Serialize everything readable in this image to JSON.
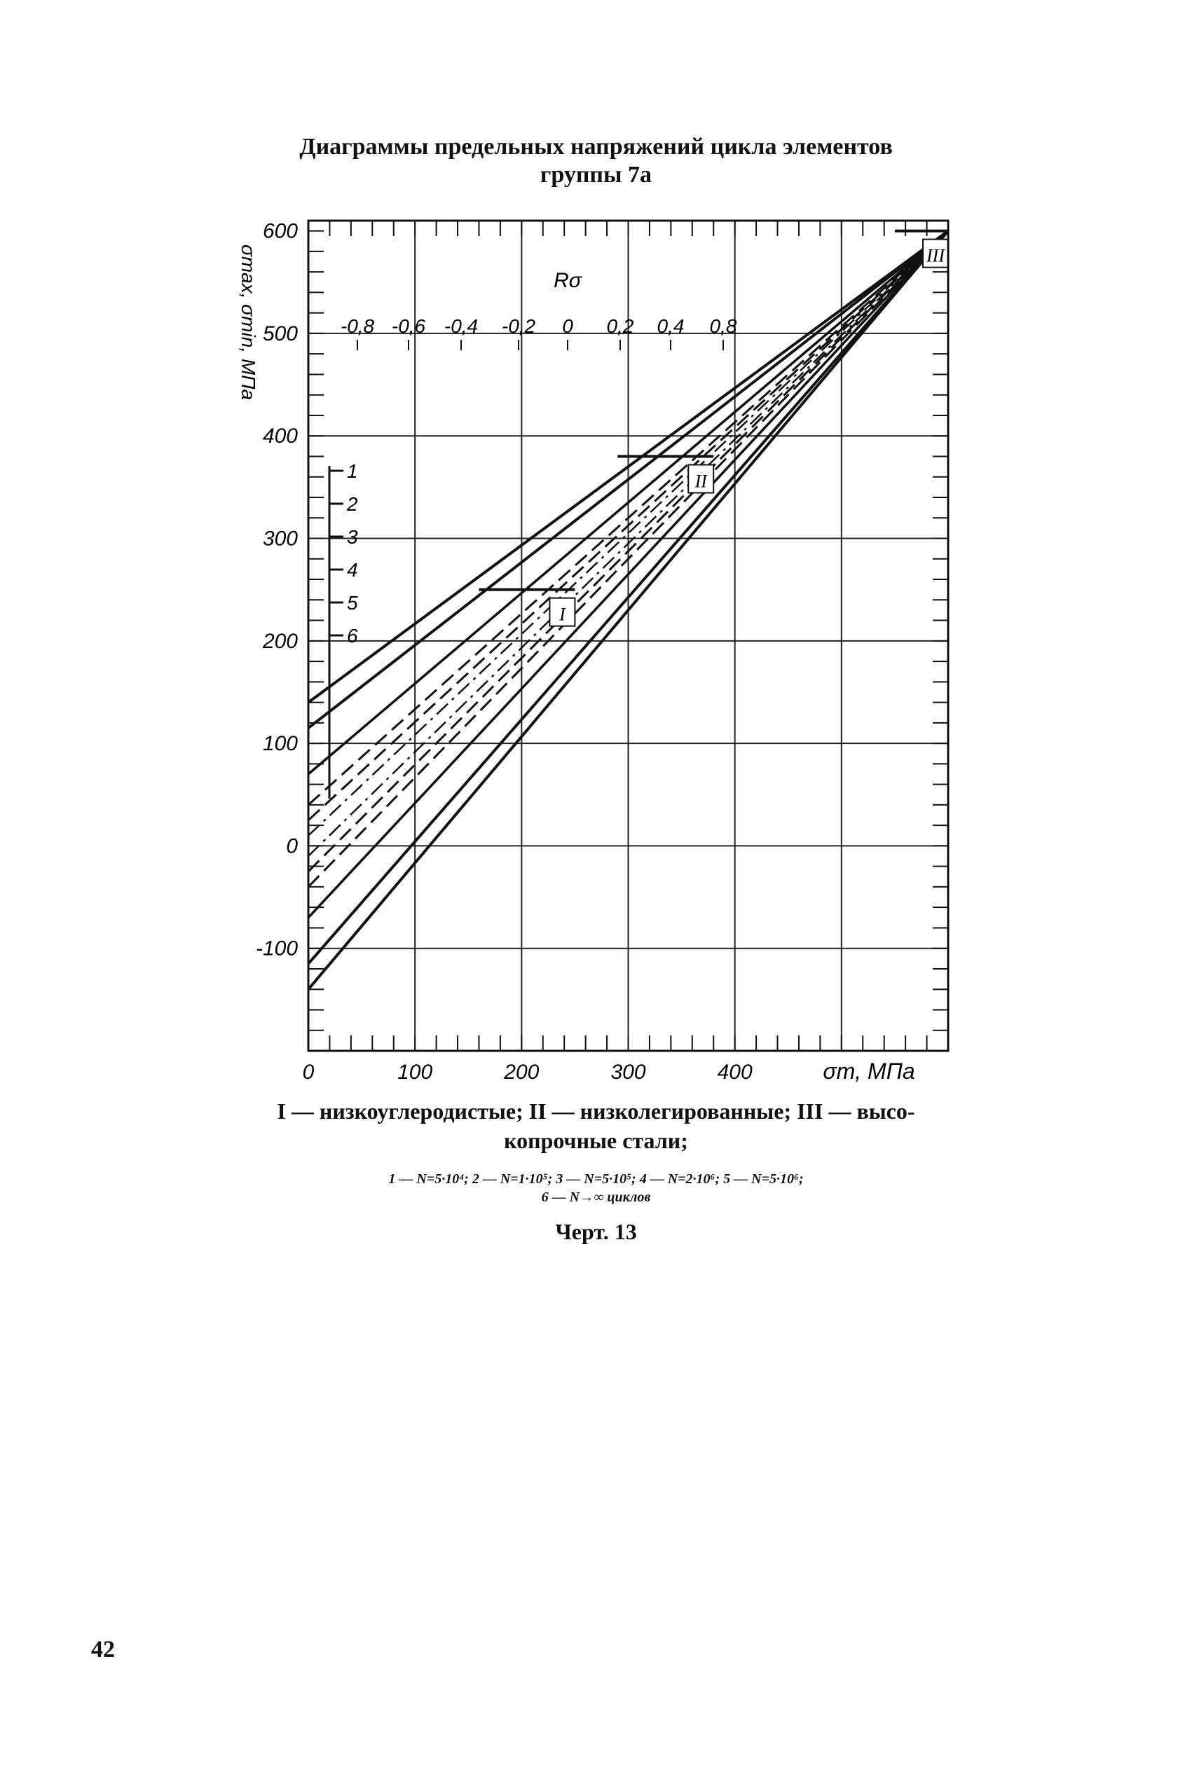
{
  "page": {
    "title_line1": "Диаграммы предельных напряжений цикла элементов",
    "title_line2": "группы 7а",
    "caption_line1": "I — низкоуглеродистые; II — низколегированные; III — высо-",
    "caption_line2": "копрочные стали;",
    "caption_line3": "1 — N=5·10⁴; 2 — N=1·10⁵; 3 — N=5·10⁵; 4 — N=2·10⁶; 5 — N=5·10⁶;",
    "caption_line4": "6 — N→∞ циклов",
    "figure_label": "Черт. 13",
    "page_number": "42"
  },
  "chart_data": {
    "type": "line",
    "xlabel": "σm, МПа",
    "ylabel": "σmax, σmin, МПа",
    "x_ticks": [
      "0",
      "100",
      "200",
      "300",
      "400"
    ],
    "y_ticks": [
      "600",
      "500",
      "400",
      "300",
      "200",
      "100",
      "0",
      "-100"
    ],
    "xlim": [
      0,
      600
    ],
    "ylim": [
      -200,
      610
    ],
    "grid": true,
    "r_scale": {
      "label": "Rσ",
      "ticks": [
        "-0,8",
        "-0,6",
        "-0,4",
        "-0,2",
        "0",
        "0,2",
        "0,4",
        "0,8"
      ]
    },
    "curve_labels": [
      "1",
      "2",
      "3",
      "4",
      "5",
      "6"
    ],
    "region_labels": [
      "I",
      "II",
      "III"
    ],
    "steel_region_limits": [
      {
        "name": "I",
        "sigma_max": 250,
        "sigma_m_from": 160,
        "sigma_m_to": 250
      },
      {
        "name": "II",
        "sigma_max": 380,
        "sigma_m_from": 290,
        "sigma_m_to": 380
      },
      {
        "name": "III",
        "sigma_max": 600,
        "sigma_m_from": 550,
        "sigma_m_to": 600
      }
    ],
    "series": [
      {
        "values": {
          "upper": [
            [
              0,
              140
            ],
            [
              600,
              600
            ]
          ],
          "lower": [
            [
              0,
              -140
            ],
            [
              600,
              600
            ]
          ]
        },
        "style": "solid"
      },
      {
        "values": {
          "upper": [
            [
              0,
              115
            ],
            [
              600,
              600
            ]
          ],
          "lower": [
            [
              0,
              -115
            ],
            [
              600,
              600
            ]
          ]
        },
        "style": "solid"
      },
      {
        "values": {
          "upper": [
            [
              0,
              70
            ],
            [
              600,
              600
            ]
          ],
          "lower": [
            [
              0,
              -70
            ],
            [
              600,
              600
            ]
          ]
        },
        "style": "solid"
      },
      {
        "values": {
          "upper": [
            [
              0,
              40
            ],
            [
              600,
              600
            ]
          ],
          "lower": [
            [
              0,
              -40
            ],
            [
              600,
              600
            ]
          ]
        },
        "style": "dashed"
      },
      {
        "values": {
          "upper": [
            [
              0,
              25
            ],
            [
              600,
              600
            ]
          ],
          "lower": [
            [
              0,
              -25
            ],
            [
              600,
              600
            ]
          ]
        },
        "style": "dashed"
      },
      {
        "values": {
          "upper": [
            [
              0,
              10
            ],
            [
              600,
              600
            ]
          ],
          "lower": [
            [
              0,
              -10
            ],
            [
              600,
              600
            ]
          ]
        },
        "style": "dash-dot"
      }
    ]
  }
}
